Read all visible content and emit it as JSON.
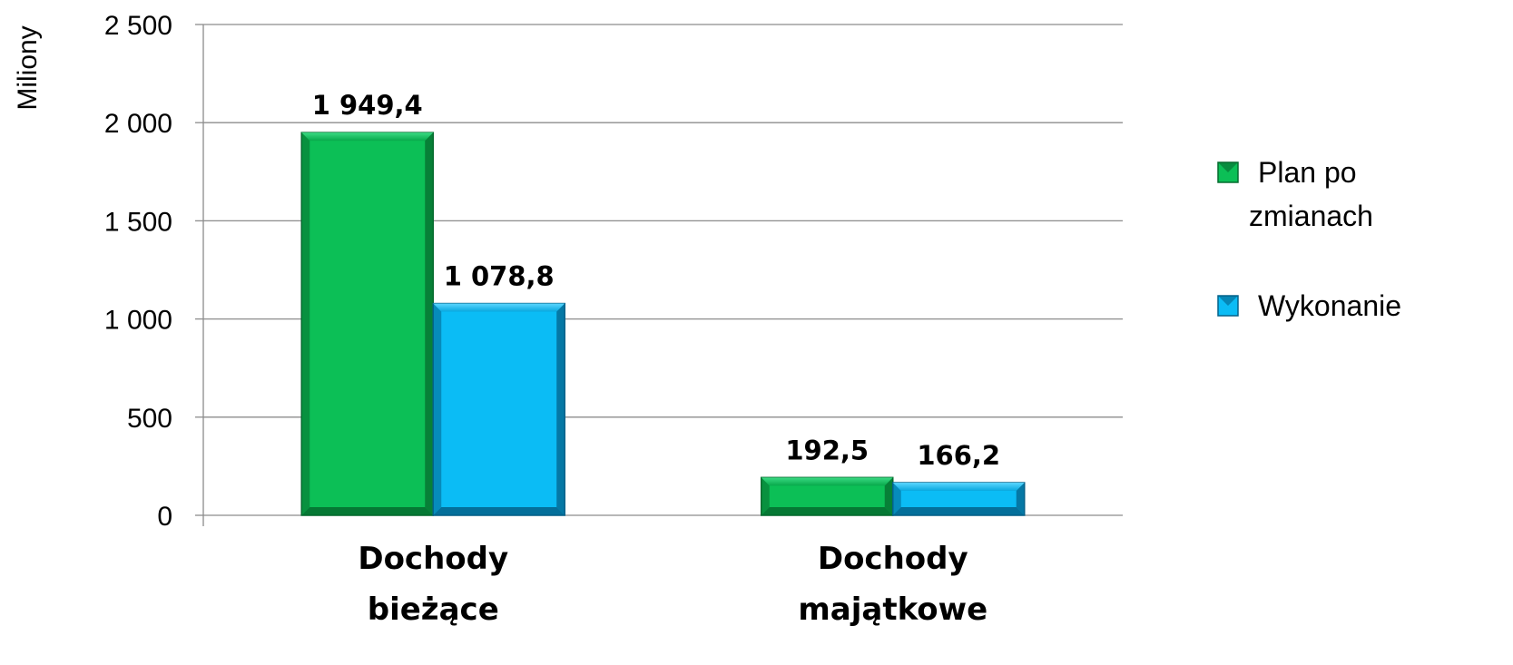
{
  "chart_data": {
    "type": "bar",
    "ylabel": "Miliony",
    "ylim": [
      0,
      2500
    ],
    "yticks": [
      0,
      500,
      1000,
      1500,
      2000,
      2500
    ],
    "ytick_labels": [
      "0",
      "500",
      "1 000",
      "1 500",
      "2 000",
      "2 500"
    ],
    "categories": [
      [
        "Dochody",
        "bieżące"
      ],
      [
        "Dochody",
        "majątkowe"
      ]
    ],
    "series": [
      {
        "name": [
          "Plan po",
          "zmianach"
        ],
        "values": [
          1949.4,
          192.5
        ],
        "labels": [
          "1 949,4",
          "192,5"
        ],
        "color": "#0cbf56"
      },
      {
        "name": [
          "Wykonanie"
        ],
        "values": [
          1078.8,
          166.2
        ],
        "labels": [
          "1 078,8",
          "166,2"
        ],
        "color": "#0bbcf5"
      }
    ],
    "grid": true,
    "legend_position": "right"
  }
}
